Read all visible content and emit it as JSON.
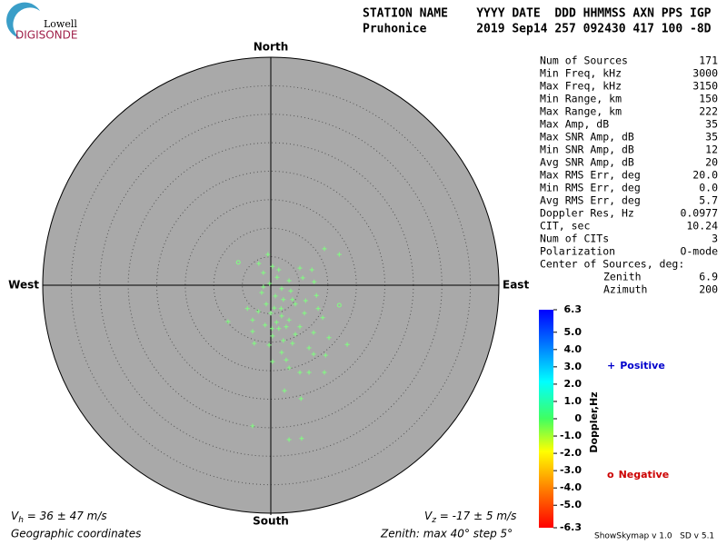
{
  "logo": {
    "top": "Lowell",
    "bottom": "DIGISONDE"
  },
  "header": {
    "line1": "STATION NAME    YYYY DATE  DDD HHMMSS AXN PPS IGP",
    "line2": "Pruhonice       2019 Sep14 257 092430 417 100 -8D"
  },
  "stats": [
    [
      "Num of Sources",
      "171"
    ],
    [
      "Min Freq, kHz",
      "3000"
    ],
    [
      "Max Freq, kHz",
      "3150"
    ],
    [
      "Min Range, km",
      "150"
    ],
    [
      "Max Range, km",
      "222"
    ],
    [
      "Max Amp, dB",
      "35"
    ],
    [
      "Max SNR Amp, dB",
      "35"
    ],
    [
      "Min SNR Amp, dB",
      "12"
    ],
    [
      "Avg SNR Amp, dB",
      "20"
    ],
    [
      "Max RMS Err, deg",
      "20.0"
    ],
    [
      "Min RMS Err, deg",
      "0.0"
    ],
    [
      "Avg RMS Err, deg",
      "5.7"
    ],
    [
      "Doppler Res, Hz",
      "0.0977"
    ],
    [
      "CIT, sec",
      "10.24"
    ],
    [
      "Num of CITs",
      "3"
    ],
    [
      "Polarization",
      "O-mode"
    ]
  ],
  "center": {
    "title": "Center of Sources, deg:",
    "rows": [
      [
        "Zenith",
        "6.9"
      ],
      [
        "Azimuth",
        "200"
      ]
    ]
  },
  "footer": {
    "vh_symbol": "V",
    "vh_sub": "h",
    "vh_text": " = 36 ± 47 m/s",
    "vz_symbol": "V",
    "vz_sub": "z",
    "vz_text": " = -17 ± 5 m/s",
    "coords": "Geographic coordinates",
    "zenith": "Zenith: max 40°  step 5°",
    "version": "ShowSkymap v 1.0   SD v 5.1"
  },
  "chart_data": {
    "type": "scatter",
    "directions": {
      "north": "North",
      "south": "South",
      "east": "East",
      "west": "West"
    },
    "xlim": [
      -40,
      40
    ],
    "ylim": [
      -40,
      40
    ],
    "rings": [
      5,
      10,
      15,
      20,
      25,
      30,
      35
    ],
    "point_color": "#80ff80",
    "series": [
      {
        "name": "Positive",
        "color": "#0000cc",
        "marker": "+",
        "x": [
          -0.5,
          -2.1,
          0.3,
          1.4,
          5.1,
          7.2,
          9.4,
          12.0,
          5.6,
          7.6,
          3.2,
          -1.3,
          -0.2,
          1.9,
          -1.6,
          0.8,
          2.2,
          3.8,
          6.1,
          8.0,
          8.3,
          4.3,
          9.1,
          -0.8,
          0.6,
          -2.2,
          -4.1,
          -7.5,
          -3.2,
          0.0,
          1.9,
          3.2,
          5.1,
          7.5,
          1.4,
          0.3,
          -0.3,
          2.2,
          3.8,
          6.7,
          7.5,
          0.3,
          2.7,
          5.1,
          3.2,
          6.7,
          9.4,
          13.4,
          10.2,
          0.2,
          -3.2,
          -2.9,
          2.4,
          5.3,
          -3.2,
          3.2,
          5.4,
          9.6,
          1.0,
          1.8,
          -1.0,
          2.7,
          4.3,
          -1.3,
          1.1,
          3.5,
          5.9,
          1.9
        ],
        "y": [
          5.4,
          3.8,
          3.3,
          2.7,
          3.0,
          2.7,
          6.4,
          5.4,
          1.3,
          0.6,
          0.8,
          -0.3,
          0.3,
          -0.6,
          -1.3,
          -1.9,
          -2.5,
          -2.5,
          -2.7,
          -1.8,
          -4.1,
          -3.3,
          -5.7,
          -3.3,
          -4.0,
          -4.6,
          -4.1,
          -6.4,
          -6.1,
          -4.9,
          -5.4,
          -6.1,
          -7.3,
          -8.3,
          -7.6,
          -8.9,
          -10.5,
          -9.7,
          -10.2,
          -11.0,
          -12.1,
          -13.4,
          -13.1,
          -15.3,
          -14.5,
          -15.3,
          -15.3,
          -10.4,
          -9.2,
          -7.6,
          -8.1,
          -10.2,
          -18.5,
          -19.9,
          -24.7,
          -27.1,
          -26.9,
          -12.3,
          -6.5,
          -4.1,
          -7.0,
          -7.3,
          -8.6,
          2.2,
          1.4,
          -1.0,
          -4.9,
          -11.8
        ]
      },
      {
        "name": "Negative",
        "color": "#cc0000",
        "marker": "o",
        "x": [
          -5.7,
          12.0
        ],
        "y": [
          4.0,
          -3.5
        ]
      }
    ],
    "colorbar": {
      "label": "Doppler,Hz",
      "lim": [
        -6.3,
        6.3
      ],
      "ticks": [
        6.3,
        {
          "value": 5,
          "label": "5.0"
        },
        {
          "value": 4,
          "label": "4.0"
        },
        {
          "value": 3,
          "label": "3.0"
        },
        {
          "value": 2,
          "label": "2.0"
        },
        {
          "value": 1,
          "label": "1.0"
        },
        0,
        {
          "value": -1,
          "label": "-1.0"
        },
        {
          "value": -2,
          "label": "-2.0"
        },
        {
          "value": -3,
          "label": "-3.0"
        },
        {
          "value": -4,
          "label": "-4.0"
        },
        {
          "value": -5,
          "label": "-5.0"
        },
        -6.3
      ]
    }
  }
}
